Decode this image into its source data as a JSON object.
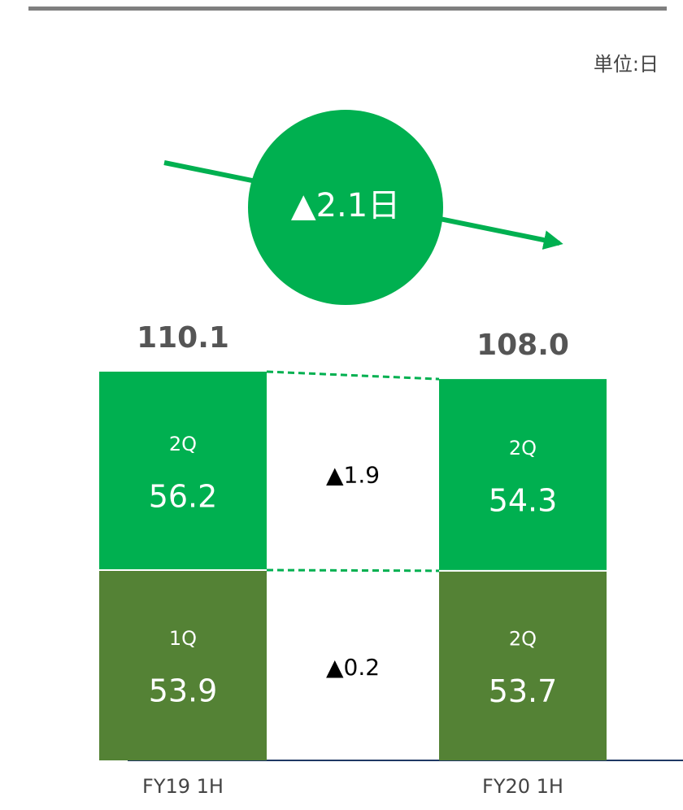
{
  "chart_data": {
    "type": "stacked-bar",
    "unit": "単位:日",
    "badge": "▲2.1日",
    "categories": [
      "FY19 1H",
      "FY20 1H"
    ],
    "series": [
      {
        "color": "#548235",
        "segment_labels": [
          "1Q",
          "2Q"
        ],
        "values": [
          53.9,
          53.7
        ]
      },
      {
        "color": "#00b050",
        "segment_labels": [
          "2Q",
          "2Q"
        ],
        "values": [
          56.2,
          54.3
        ]
      }
    ],
    "totals": {
      "values": [
        110.1,
        108.0
      ],
      "value_labels": [
        "110.1",
        "108.0"
      ]
    },
    "differences": [
      "▲0.2",
      "▲1.9"
    ],
    "ylim": [
      0,
      120
    ]
  }
}
